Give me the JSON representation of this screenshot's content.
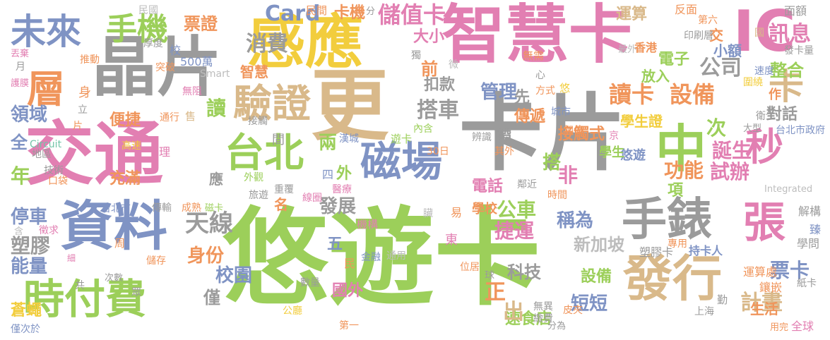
{
  "word_cloud": {
    "palette": {
      "green": "#9ccf5a",
      "gray": "#9b9b9b",
      "pink": "#e27fb2",
      "tan": "#d9b98a",
      "blue": "#7f93c4",
      "orange": "#f0955b",
      "yellow": "#f2cd3d",
      "teal": "#73c4a8",
      "light": "#bdbdbd"
    },
    "words": [
      {
        "text": "悠遊卡",
        "color": "green"
      },
      {
        "text": "卡片",
        "color": "gray"
      },
      {
        "text": "交通",
        "color": "pink"
      },
      {
        "text": "智慧卡",
        "color": "pink"
      },
      {
        "text": "晶片",
        "color": "gray"
      },
      {
        "text": "更",
        "color": "tan"
      },
      {
        "text": "感應",
        "color": "yellow"
      },
      {
        "text": "資料",
        "color": "blue"
      },
      {
        "text": "發行",
        "color": "tan"
      },
      {
        "text": "手錶",
        "color": "gray"
      },
      {
        "text": "IC",
        "color": "pink"
      },
      {
        "text": "中",
        "color": "green"
      },
      {
        "text": "時付費",
        "color": "green"
      },
      {
        "text": "磁場",
        "color": "blue"
      },
      {
        "text": "驗證",
        "color": "tan"
      },
      {
        "text": "台北",
        "color": "green"
      },
      {
        "text": "未來",
        "color": "blue"
      },
      {
        "text": "手機",
        "color": "green"
      },
      {
        "text": "層",
        "color": "orange"
      },
      {
        "text": "張",
        "color": "pink"
      },
      {
        "text": "卡",
        "color": "tan"
      },
      {
        "text": "秒",
        "color": "pink"
      },
      {
        "text": "天線",
        "color": "gray"
      },
      {
        "text": "讀卡",
        "color": "orange"
      },
      {
        "text": "設備",
        "color": "orange"
      },
      {
        "text": "訊息",
        "color": "pink"
      },
      {
        "text": "消費",
        "color": "gray"
      },
      {
        "text": "公司",
        "color": "gray"
      },
      {
        "text": "搭車",
        "color": "gray"
      },
      {
        "text": "管理",
        "color": "blue"
      },
      {
        "text": "儲值卡",
        "color": "pink"
      },
      {
        "text": "票證",
        "color": "orange"
      },
      {
        "text": "Card",
        "color": "blue"
      },
      {
        "text": "領域",
        "color": "blue"
      },
      {
        "text": "停車",
        "color": "blue"
      },
      {
        "text": "塑膠",
        "color": "gray"
      },
      {
        "text": "能量",
        "color": "blue"
      },
      {
        "text": "公車",
        "color": "green"
      },
      {
        "text": "捷運",
        "color": "pink"
      },
      {
        "text": "身份",
        "color": "orange"
      },
      {
        "text": "校園",
        "color": "blue"
      },
      {
        "text": "科技",
        "color": "gray"
      },
      {
        "text": "發展",
        "color": "gray"
      },
      {
        "text": "功能",
        "color": "orange"
      },
      {
        "text": "試辦",
        "color": "pink"
      },
      {
        "text": "誕生",
        "color": "pink"
      },
      {
        "text": "稱為",
        "color": "blue"
      },
      {
        "text": "新加坡",
        "color": "light"
      },
      {
        "text": "短短",
        "color": "blue"
      },
      {
        "text": "計畫",
        "color": "tan"
      },
      {
        "text": "票卡",
        "color": "blue"
      },
      {
        "text": "整合",
        "color": "green"
      },
      {
        "text": "電子",
        "color": "green"
      },
      {
        "text": "傳遞",
        "color": "orange"
      },
      {
        "text": "接觸式",
        "color": "orange"
      },
      {
        "text": "對話",
        "color": "gray"
      },
      {
        "text": "大小",
        "color": "pink"
      },
      {
        "text": "扣款",
        "color": "gray"
      },
      {
        "text": "卡機",
        "color": "orange"
      },
      {
        "text": "運算",
        "color": "tan"
      },
      {
        "text": "充滿",
        "color": "orange"
      },
      {
        "text": "蒼蠅",
        "color": "yellow"
      },
      {
        "text": "便捷",
        "color": "orange"
      },
      {
        "text": "速食店",
        "color": "green"
      },
      {
        "text": "設備",
        "color": "green"
      },
      {
        "text": "國外",
        "color": "pink"
      },
      {
        "text": "電話",
        "color": "pink"
      },
      {
        "text": "出",
        "color": "tan"
      },
      {
        "text": "正",
        "color": "orange"
      },
      {
        "text": "前",
        "color": "orange"
      },
      {
        "text": "次",
        "color": "green"
      },
      {
        "text": "搭",
        "color": "green"
      },
      {
        "text": "非",
        "color": "pink"
      },
      {
        "text": "年",
        "color": "green"
      },
      {
        "text": "讀",
        "color": "green"
      },
      {
        "text": "僅",
        "color": "gray"
      },
      {
        "text": "五",
        "color": "blue"
      },
      {
        "text": "兩",
        "color": "green"
      },
      {
        "text": "名",
        "color": "orange"
      },
      {
        "text": "項",
        "color": "green"
      },
      {
        "text": "全",
        "color": "blue"
      },
      {
        "text": "外",
        "color": "green"
      },
      {
        "text": "應",
        "color": "gray"
      },
      {
        "text": "小額",
        "color": "blue"
      },
      {
        "text": "放入",
        "color": "green"
      },
      {
        "text": "學生證",
        "color": "yellow"
      },
      {
        "text": "學校",
        "color": "orange"
      },
      {
        "text": "悠遊",
        "color": "blue"
      },
      {
        "text": "生活",
        "color": "orange"
      },
      {
        "text": "學生",
        "color": "green"
      },
      {
        "text": "持卡人",
        "color": "blue"
      },
      {
        "text": "台北市政府",
        "color": "blue"
      },
      {
        "text": "香港",
        "color": "orange"
      },
      {
        "text": "智慧",
        "color": "orange"
      },
      {
        "text": "500萬",
        "color": "blue"
      },
      {
        "text": "Smart",
        "color": "light"
      },
      {
        "text": "Circuit",
        "color": "teal"
      },
      {
        "text": "Integrated",
        "color": "light"
      },
      {
        "text": "民國",
        "color": "light"
      },
      {
        "text": "民間",
        "color": "orange"
      },
      {
        "text": "分",
        "color": "gray"
      },
      {
        "text": "反面",
        "color": "orange"
      },
      {
        "text": "面額",
        "color": "gray"
      },
      {
        "text": "第六",
        "color": "orange"
      },
      {
        "text": "交",
        "color": "orange"
      },
      {
        "text": "國",
        "color": "tan"
      },
      {
        "text": "獨",
        "color": "gray"
      },
      {
        "text": "印刷層",
        "color": "gray"
      },
      {
        "text": "發卡量",
        "color": "gray"
      },
      {
        "text": "無需",
        "color": "orange"
      },
      {
        "text": "最外",
        "color": "light"
      },
      {
        "text": "速度",
        "color": "blue"
      },
      {
        "text": "圍繞",
        "color": "yellow"
      },
      {
        "text": "作",
        "color": "orange"
      },
      {
        "text": "悠",
        "color": "yellow"
      },
      {
        "text": "方式",
        "color": "orange"
      },
      {
        "text": "先",
        "color": "gray"
      },
      {
        "text": "城市",
        "color": "blue"
      },
      {
        "text": "辨識",
        "color": "gray"
      },
      {
        "text": "帶",
        "color": "gray"
      },
      {
        "text": "內含",
        "color": "green"
      },
      {
        "text": "遊卡",
        "color": "green"
      },
      {
        "text": "加值",
        "color": "orange"
      },
      {
        "text": "京",
        "color": "pink"
      },
      {
        "text": "衛生",
        "color": "gray"
      },
      {
        "text": "大型",
        "color": "gray"
      },
      {
        "text": "其外",
        "color": "orange"
      },
      {
        "text": "30日",
        "color": "orange"
      },
      {
        "text": "漢城",
        "color": "blue"
      },
      {
        "text": "外觀",
        "color": "green"
      },
      {
        "text": "重覆",
        "color": "gray"
      },
      {
        "text": "鄰近",
        "color": "gray"
      },
      {
        "text": "四",
        "color": "blue"
      },
      {
        "text": "醫療",
        "color": "pink"
      },
      {
        "text": "線圈",
        "color": "pink"
      },
      {
        "text": "旅遊",
        "color": "gray"
      },
      {
        "text": "時間",
        "color": "orange"
      },
      {
        "text": "解構",
        "color": "gray"
      },
      {
        "text": "臻",
        "color": "blue"
      },
      {
        "text": "學問",
        "color": "gray"
      },
      {
        "text": "專用",
        "color": "orange"
      },
      {
        "text": "塑膠卡",
        "color": "gray"
      },
      {
        "text": "運算處",
        "color": "orange"
      },
      {
        "text": "鑲嵌",
        "color": "orange"
      },
      {
        "text": "紙卡",
        "color": "gray"
      },
      {
        "text": "全球",
        "color": "pink"
      },
      {
        "text": "用完",
        "color": "orange"
      },
      {
        "text": "勤",
        "color": "gray"
      },
      {
        "text": "上海",
        "color": "gray"
      },
      {
        "text": "皮夾",
        "color": "orange"
      },
      {
        "text": "無異",
        "color": "gray"
      },
      {
        "text": "繳費",
        "color": "gray"
      },
      {
        "text": "分為",
        "color": "gray"
      },
      {
        "text": "第一",
        "color": "orange"
      },
      {
        "text": "東",
        "color": "pink"
      },
      {
        "text": "位居",
        "color": "orange"
      },
      {
        "text": "球",
        "color": "gray"
      },
      {
        "text": "易",
        "color": "orange"
      },
      {
        "text": "臟",
        "color": "light"
      },
      {
        "text": "機構",
        "color": "pink"
      },
      {
        "text": "金融",
        "color": "blue"
      },
      {
        "text": "通用",
        "color": "light"
      },
      {
        "text": "數量",
        "color": "gray"
      },
      {
        "text": "公廳",
        "color": "yellow"
      },
      {
        "text": "民",
        "color": "orange"
      },
      {
        "text": "台北市",
        "color": "blue"
      },
      {
        "text": "傳輸",
        "color": "gray"
      },
      {
        "text": "成熟",
        "color": "orange"
      },
      {
        "text": "磁卡",
        "color": "green"
      },
      {
        "text": "儲存",
        "color": "orange"
      },
      {
        "text": "次數",
        "color": "gray"
      },
      {
        "text": "眾",
        "color": "gray"
      },
      {
        "text": "周",
        "color": "orange"
      },
      {
        "text": "細",
        "color": "pink"
      },
      {
        "text": "共",
        "color": "gray"
      },
      {
        "text": "含",
        "color": "light"
      },
      {
        "text": "徵求",
        "color": "pink"
      },
      {
        "text": "僅次於",
        "color": "blue"
      },
      {
        "text": "口袋",
        "color": "orange"
      },
      {
        "text": "技術",
        "color": "gray"
      },
      {
        "text": "地區",
        "color": "gray"
      },
      {
        "text": "高速",
        "color": "yellow"
      },
      {
        "text": "理",
        "color": "pink"
      },
      {
        "text": "通行",
        "color": "orange"
      },
      {
        "text": "接觸",
        "color": "gray"
      },
      {
        "text": "間",
        "color": "gray"
      },
      {
        "text": "售",
        "color": "tan"
      },
      {
        "text": "無阻",
        "color": "pink"
      },
      {
        "text": "厚度",
        "color": "gray"
      },
      {
        "text": "突破",
        "color": "orange"
      },
      {
        "text": "推動",
        "color": "orange"
      },
      {
        "text": "校",
        "color": "blue"
      },
      {
        "text": "丟棄",
        "color": "pink"
      },
      {
        "text": "月",
        "color": "gray"
      },
      {
        "text": "護膜",
        "color": "pink"
      },
      {
        "text": "身",
        "color": "orange"
      },
      {
        "text": "立",
        "color": "gray"
      },
      {
        "text": "片",
        "color": "orange"
      },
      {
        "text": "微",
        "color": "light"
      },
      {
        "text": "心",
        "color": "gray"
      }
    ]
  }
}
